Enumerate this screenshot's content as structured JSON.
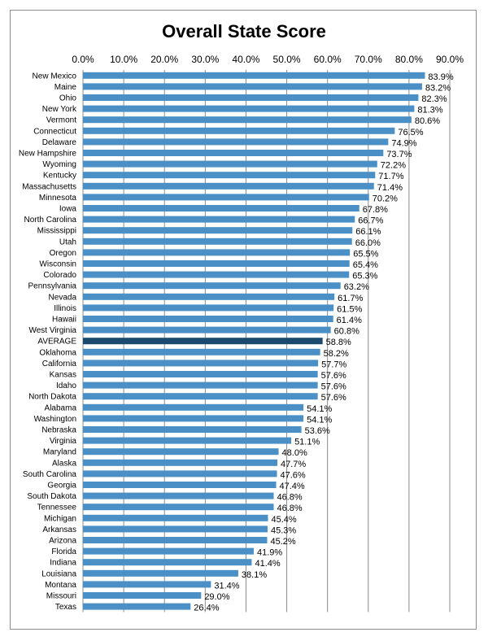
{
  "chart_data": {
    "type": "bar",
    "orientation": "horizontal",
    "title": "Overall State Score",
    "xlabel": "",
    "ylabel": "",
    "xlim": [
      0,
      90
    ],
    "x_ticks": [
      "0.0%",
      "10.0%",
      "20.0%",
      "30.0%",
      "40.0%",
      "50.0%",
      "60.0%",
      "70.0%",
      "80.0%",
      "90.0%"
    ],
    "x_tick_values": [
      0,
      10,
      20,
      30,
      40,
      50,
      60,
      70,
      80,
      90
    ],
    "x_axis_position": "top",
    "grid": true,
    "legend": false,
    "colors": {
      "bar": "#4a90c7",
      "highlight_bar": "#1a4a6e",
      "grid": "#8c8c8c",
      "frame": "#8c8c8c"
    },
    "highlight_category": "AVERAGE",
    "categories": [
      "New Mexico",
      "Maine",
      "Ohio",
      "New York",
      "Vermont",
      "Connecticut",
      "Delaware",
      "New Hampshire",
      "Wyoming",
      "Kentucky",
      "Massachusetts",
      "Minnesota",
      "Iowa",
      "North Carolina",
      "Mississippi",
      "Utah",
      "Oregon",
      "Wisconsin",
      "Colorado",
      "Pennsylvania",
      "Nevada",
      "Illinois",
      "Hawaii",
      "West Virginia",
      "AVERAGE",
      "Oklahoma",
      "California",
      "Kansas",
      "Idaho",
      "North Dakota",
      "Alabama",
      "Washington",
      "Nebraska",
      "Virginia",
      "Maryland",
      "Alaska",
      "South Carolina",
      "Georgia",
      "South Dakota",
      "Tennessee",
      "Michigan",
      "Arkansas",
      "Arizona",
      "Florida",
      "Indiana",
      "Louisiana",
      "Montana",
      "Missouri",
      "Texas"
    ],
    "values": [
      83.9,
      83.2,
      82.3,
      81.3,
      80.6,
      76.5,
      74.9,
      73.7,
      72.2,
      71.7,
      71.4,
      70.2,
      67.8,
      66.7,
      66.1,
      66.0,
      65.5,
      65.4,
      65.3,
      63.2,
      61.7,
      61.5,
      61.4,
      60.8,
      58.8,
      58.2,
      57.7,
      57.6,
      57.6,
      57.6,
      54.1,
      54.1,
      53.6,
      51.1,
      48.0,
      47.7,
      47.6,
      47.4,
      46.8,
      46.8,
      45.4,
      45.3,
      45.2,
      41.9,
      41.4,
      38.1,
      31.4,
      29.0,
      26.4
    ],
    "data_labels": [
      "83.9%",
      "83.2%",
      "82.3%",
      "81.3%",
      "80.6%",
      "76.5%",
      "74.9%",
      "73.7%",
      "72.2%",
      "71.7%",
      "71.4%",
      "70.2%",
      "67.8%",
      "66.7%",
      "66.1%",
      "66.0%",
      "65.5%",
      "65.4%",
      "65.3%",
      "63.2%",
      "61.7%",
      "61.5%",
      "61.4%",
      "60.8%",
      "58.8%",
      "58.2%",
      "57.7%",
      "57.6%",
      "57.6%",
      "57.6%",
      "54.1%",
      "54.1%",
      "53.6%",
      "51.1%",
      "48.0%",
      "47.7%",
      "47.6%",
      "47.4%",
      "46.8%",
      "46.8%",
      "45.4%",
      "45.3%",
      "45.2%",
      "41.9%",
      "41.4%",
      "38.1%",
      "31.4%",
      "29.0%",
      "26.4%"
    ]
  }
}
